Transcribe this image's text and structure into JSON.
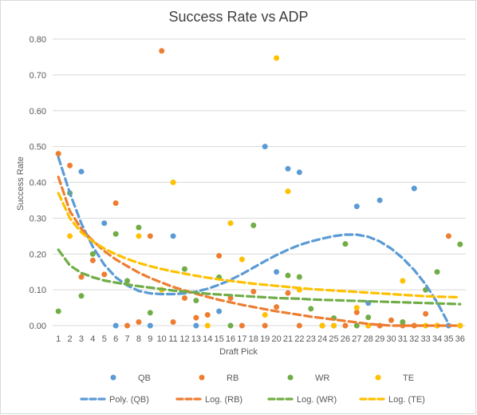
{
  "chart_data": {
    "type": "scatter",
    "title": "Success Rate vs ADP",
    "xlabel": "Draft Pick",
    "ylabel": "Success Rate",
    "x_ticks": [
      "1",
      "2",
      "3",
      "4",
      "5",
      "6",
      "7",
      "8",
      "9",
      "10",
      "11",
      "12",
      "13",
      "14",
      "15",
      "16",
      "17",
      "18",
      "19",
      "20",
      "21",
      "22",
      "23",
      "24",
      "25",
      "26",
      "27",
      "28",
      "29",
      "30",
      "31",
      "32",
      "33",
      "34",
      "35",
      "36"
    ],
    "y_ticks": [
      "0.00",
      "0.10",
      "0.20",
      "0.30",
      "0.40",
      "0.50",
      "0.60",
      "0.70",
      "0.80"
    ],
    "xlim": [
      0.5,
      36.5
    ],
    "ylim": [
      0,
      0.8
    ],
    "grid": "horizontal",
    "legend_position": "bottom",
    "series": [
      {
        "name": "QB",
        "color": "#5b9bd5",
        "points": [
          [
            3,
            0.43
          ],
          [
            5,
            0.286
          ],
          [
            6,
            0
          ],
          [
            9,
            0
          ],
          [
            11,
            0.25
          ],
          [
            13,
            0
          ],
          [
            15,
            0.04
          ],
          [
            19,
            0.5
          ],
          [
            20,
            0.15
          ],
          [
            21,
            0.438
          ],
          [
            22,
            0.428
          ],
          [
            24,
            0
          ],
          [
            25,
            0
          ],
          [
            27,
            0.333
          ],
          [
            28,
            0.063
          ],
          [
            29,
            0.35
          ],
          [
            32,
            0.383
          ],
          [
            35,
            0
          ]
        ]
      },
      {
        "name": "RB",
        "color": "#ed7d31",
        "points": [
          [
            1,
            0.48
          ],
          [
            2,
            0.447
          ],
          [
            3,
            0.136
          ],
          [
            4,
            0.182
          ],
          [
            5,
            0.143
          ],
          [
            6,
            0.342
          ],
          [
            7,
            0
          ],
          [
            8,
            0.01
          ],
          [
            9,
            0.25
          ],
          [
            10,
            0.767
          ],
          [
            11,
            0.01
          ],
          [
            12,
            0.077
          ],
          [
            13,
            0.022
          ],
          [
            14,
            0.03
          ],
          [
            15,
            0.195
          ],
          [
            16,
            0.077
          ],
          [
            17,
            0
          ],
          [
            18,
            0.095
          ],
          [
            19,
            0
          ],
          [
            20,
            0.052
          ],
          [
            21,
            0.091
          ],
          [
            22,
            0
          ],
          [
            24,
            0
          ],
          [
            26,
            0
          ],
          [
            27,
            0.037
          ],
          [
            28,
            0
          ],
          [
            29,
            0
          ],
          [
            30,
            0.015
          ],
          [
            31,
            0
          ],
          [
            32,
            0
          ],
          [
            33,
            0.033
          ],
          [
            34,
            0
          ],
          [
            35,
            0.25
          ],
          [
            36,
            0
          ]
        ]
      },
      {
        "name": "WR",
        "color": "#70ad47",
        "points": [
          [
            1,
            0.04
          ],
          [
            2,
            0.37
          ],
          [
            3,
            0.083
          ],
          [
            4,
            0.2
          ],
          [
            6,
            0.256
          ],
          [
            7,
            0.125
          ],
          [
            8,
            0.274
          ],
          [
            9,
            0.036
          ],
          [
            12,
            0.158
          ],
          [
            13,
            0.07
          ],
          [
            15,
            0.135
          ],
          [
            16,
            0
          ],
          [
            18,
            0.28
          ],
          [
            21,
            0.14
          ],
          [
            22,
            0.136
          ],
          [
            23,
            0.047
          ],
          [
            25,
            0.021
          ],
          [
            26,
            0.228
          ],
          [
            27,
            0
          ],
          [
            28,
            0.023
          ],
          [
            31,
            0.01
          ],
          [
            33,
            0.1
          ],
          [
            34,
            0.15
          ],
          [
            36,
            0.227
          ]
        ]
      },
      {
        "name": "TE",
        "color": "#ffc000",
        "points": [
          [
            2,
            0.25
          ],
          [
            8,
            0.25
          ],
          [
            10,
            0.1
          ],
          [
            11,
            0.4
          ],
          [
            14,
            0
          ],
          [
            16,
            0.286
          ],
          [
            17,
            0.185
          ],
          [
            19,
            0.03
          ],
          [
            20,
            0.747
          ],
          [
            21,
            0.375
          ],
          [
            22,
            0.1
          ],
          [
            24,
            0
          ],
          [
            25,
            0
          ],
          [
            27,
            0.05
          ],
          [
            28,
            0
          ],
          [
            31,
            0.125
          ],
          [
            33,
            0
          ],
          [
            34,
            0
          ],
          [
            36,
            0
          ]
        ]
      }
    ],
    "trendlines": [
      {
        "name": "Poly. (QB)",
        "color": "#5b9bd5",
        "kind": "polynomial",
        "points": [
          [
            1,
            0.47
          ],
          [
            2,
            0.37
          ],
          [
            3,
            0.285
          ],
          [
            4,
            0.22
          ],
          [
            5,
            0.17
          ],
          [
            6,
            0.135
          ],
          [
            7,
            0.112
          ],
          [
            8,
            0.097
          ],
          [
            9,
            0.09
          ],
          [
            10,
            0.088
          ],
          [
            11,
            0.088
          ],
          [
            12,
            0.09
          ],
          [
            13,
            0.095
          ],
          [
            14,
            0.103
          ],
          [
            15,
            0.114
          ],
          [
            16,
            0.128
          ],
          [
            17,
            0.144
          ],
          [
            18,
            0.162
          ],
          [
            19,
            0.18
          ],
          [
            20,
            0.197
          ],
          [
            21,
            0.212
          ],
          [
            22,
            0.225
          ],
          [
            23,
            0.235
          ],
          [
            24,
            0.243
          ],
          [
            25,
            0.25
          ],
          [
            26,
            0.254
          ],
          [
            27,
            0.254
          ],
          [
            28,
            0.248
          ],
          [
            29,
            0.235
          ],
          [
            30,
            0.215
          ],
          [
            31,
            0.188
          ],
          [
            32,
            0.155
          ],
          [
            33,
            0.115
          ],
          [
            34,
            0.065
          ],
          [
            35,
            0.005
          ]
        ]
      },
      {
        "name": "Log. (RB)",
        "color": "#ed7d31",
        "kind": "logarithmic",
        "points": [
          [
            1,
            0.415
          ],
          [
            2,
            0.32
          ],
          [
            3,
            0.27
          ],
          [
            4,
            0.237
          ],
          [
            5,
            0.208
          ],
          [
            6,
            0.185
          ],
          [
            7,
            0.166
          ],
          [
            8,
            0.148
          ],
          [
            9,
            0.133
          ],
          [
            10,
            0.12
          ],
          [
            11,
            0.108
          ],
          [
            12,
            0.098
          ],
          [
            13,
            0.089
          ],
          [
            14,
            0.08
          ],
          [
            15,
            0.072
          ],
          [
            16,
            0.065
          ],
          [
            17,
            0.058
          ],
          [
            18,
            0.052
          ],
          [
            19,
            0.046
          ],
          [
            20,
            0.04
          ],
          [
            21,
            0.035
          ],
          [
            22,
            0.03
          ],
          [
            23,
            0.025
          ],
          [
            24,
            0.021
          ],
          [
            25,
            0.017
          ],
          [
            26,
            0.013
          ],
          [
            27,
            0.009
          ],
          [
            28,
            0.005
          ],
          [
            29,
            0.002
          ],
          [
            30,
            0
          ],
          [
            31,
            0
          ],
          [
            32,
            0
          ],
          [
            33,
            0
          ],
          [
            34,
            0
          ],
          [
            35,
            0
          ],
          [
            36,
            0
          ]
        ]
      },
      {
        "name": "Log. (WR)",
        "color": "#70ad47",
        "kind": "logarithmic",
        "points": [
          [
            1,
            0.212
          ],
          [
            2,
            0.168
          ],
          [
            3,
            0.147
          ],
          [
            4,
            0.135
          ],
          [
            5,
            0.126
          ],
          [
            6,
            0.12
          ],
          [
            7,
            0.115
          ],
          [
            8,
            0.11
          ],
          [
            9,
            0.106
          ],
          [
            10,
            0.102
          ],
          [
            11,
            0.098
          ],
          [
            12,
            0.095
          ],
          [
            13,
            0.092
          ],
          [
            14,
            0.089
          ],
          [
            15,
            0.087
          ],
          [
            16,
            0.085
          ],
          [
            17,
            0.083
          ],
          [
            18,
            0.081
          ],
          [
            19,
            0.079
          ],
          [
            20,
            0.077
          ],
          [
            21,
            0.076
          ],
          [
            22,
            0.075
          ],
          [
            23,
            0.073
          ],
          [
            24,
            0.072
          ],
          [
            25,
            0.071
          ],
          [
            26,
            0.07
          ],
          [
            27,
            0.069
          ],
          [
            28,
            0.068
          ],
          [
            29,
            0.067
          ],
          [
            30,
            0.066
          ],
          [
            31,
            0.065
          ],
          [
            32,
            0.064
          ],
          [
            33,
            0.063
          ],
          [
            34,
            0.062
          ],
          [
            35,
            0.061
          ],
          [
            36,
            0.06
          ]
        ]
      },
      {
        "name": "Log. (TE)",
        "color": "#ffc000",
        "kind": "logarithmic",
        "points": [
          [
            1,
            0.37
          ],
          [
            2,
            0.3
          ],
          [
            3,
            0.26
          ],
          [
            4,
            0.235
          ],
          [
            5,
            0.215
          ],
          [
            6,
            0.199
          ],
          [
            7,
            0.186
          ],
          [
            8,
            0.175
          ],
          [
            9,
            0.166
          ],
          [
            10,
            0.158
          ],
          [
            11,
            0.151
          ],
          [
            12,
            0.145
          ],
          [
            13,
            0.139
          ],
          [
            14,
            0.134
          ],
          [
            15,
            0.129
          ],
          [
            16,
            0.125
          ],
          [
            17,
            0.121
          ],
          [
            18,
            0.117
          ],
          [
            19,
            0.114
          ],
          [
            20,
            0.111
          ],
          [
            21,
            0.108
          ],
          [
            22,
            0.105
          ],
          [
            23,
            0.102
          ],
          [
            24,
            0.1
          ],
          [
            25,
            0.098
          ],
          [
            26,
            0.096
          ],
          [
            27,
            0.094
          ],
          [
            28,
            0.092
          ],
          [
            29,
            0.09
          ],
          [
            30,
            0.088
          ],
          [
            31,
            0.086
          ],
          [
            32,
            0.084
          ],
          [
            33,
            0.082
          ],
          [
            34,
            0.081
          ],
          [
            35,
            0.08
          ],
          [
            36,
            0.079
          ]
        ]
      }
    ]
  }
}
